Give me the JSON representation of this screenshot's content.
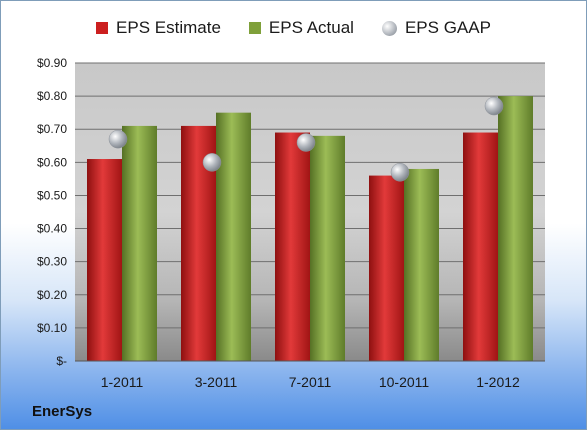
{
  "chart_data": {
    "type": "bar",
    "categories": [
      "1-2011",
      "3-2011",
      "7-2011",
      "10-2011",
      "1-2012"
    ],
    "series": [
      {
        "name": "EPS Estimate",
        "kind": "bar",
        "color": "#cc1f1f",
        "values": [
          0.61,
          0.71,
          0.69,
          0.56,
          0.69
        ]
      },
      {
        "name": "EPS Actual",
        "kind": "bar",
        "color": "#7fa03a",
        "values": [
          0.71,
          0.75,
          0.68,
          0.58,
          0.8
        ]
      },
      {
        "name": "EPS GAAP",
        "kind": "marker",
        "color": "#b8bcc2",
        "values": [
          0.67,
          0.6,
          0.66,
          0.57,
          0.77
        ]
      }
    ],
    "yticks": [
      "$-",
      "$0.10",
      "$0.20",
      "$0.30",
      "$0.40",
      "$0.50",
      "$0.60",
      "$0.70",
      "$0.80",
      "$0.90"
    ],
    "ylim": [
      0,
      0.9
    ],
    "grid": true,
    "legend_position": "top"
  },
  "footer": {
    "company": "EnerSys"
  }
}
